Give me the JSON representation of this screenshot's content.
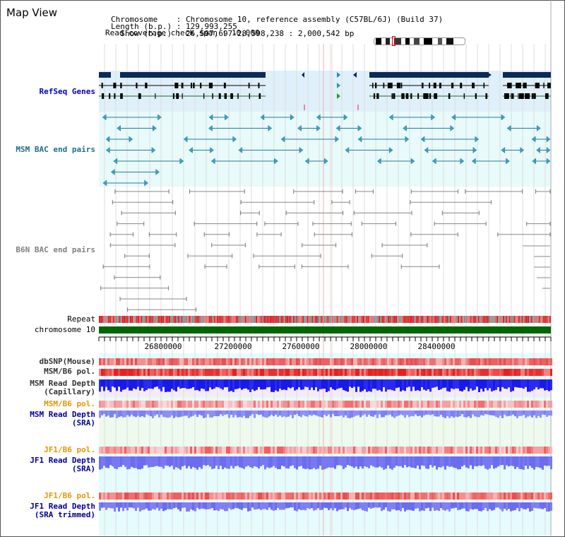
{
  "page": {
    "title": "Map View"
  },
  "info": {
    "chromosome_label": "Chromosome",
    "chromosome_value": "Chromosome 10, reference assembly (C57BL/6J) (Build 37)",
    "length_label": "Length (b.p.)",
    "length_value": "129,993,255",
    "show_label": "Show (b.p.)",
    "show_value": "26,597,697-28,598,238 : 2,000,542 bp",
    "coverage_label": "Read coverage check span",
    "coverage_value": "10,000"
  },
  "tracks": {
    "refseq": "RefSeq Genes",
    "msm_bac": "MSM BAC end pairs",
    "b6n_bac": "B6N BAC end pairs",
    "repeat": "Repeat",
    "chromosome": "chromosome 10",
    "dbsnp": "dbSNP(Mouse)",
    "msm_b6_pol_1": "MSM/B6 pol.",
    "msm_depth_cap_1": "MSM Read Depth",
    "msm_depth_cap_2": "(Capillary)",
    "msm_b6_pol_2": "MSM/B6 pol.",
    "msm_depth_sra_1": "MSM Read Depth",
    "msm_depth_sra_2": "(SRA)",
    "jf1_b6_pol_1": "JF1/B6 pol.",
    "jf1_depth_sra_1": "JF1 Read Depth",
    "jf1_depth_sra_2": "(SRA)",
    "jf1_b6_pol_2": "JF1/B6 pol.",
    "jf1_depth_trim_1": "JF1 Read Depth",
    "jf1_depth_trim_2": "(SRA trimmed)"
  },
  "axis": {
    "ticks": [
      "26800000",
      "27200000",
      "27600000",
      "28000000",
      "28400000"
    ]
  },
  "colors": {
    "refseq_label": "#0000cc",
    "msm_label": "#1f6e8c",
    "b6n_label": "#808080",
    "orange_label": "#e69500",
    "blue_label": "#000099",
    "dark_label": "#333333",
    "gene_dark": "#0a2a5a",
    "msm_pair": "#2a7a99",
    "b6n_pair": "#888888",
    "chromosome_bar": "#006600",
    "depth_blue": "#1a1ae6",
    "depth_light": "#7f7ff0"
  }
}
